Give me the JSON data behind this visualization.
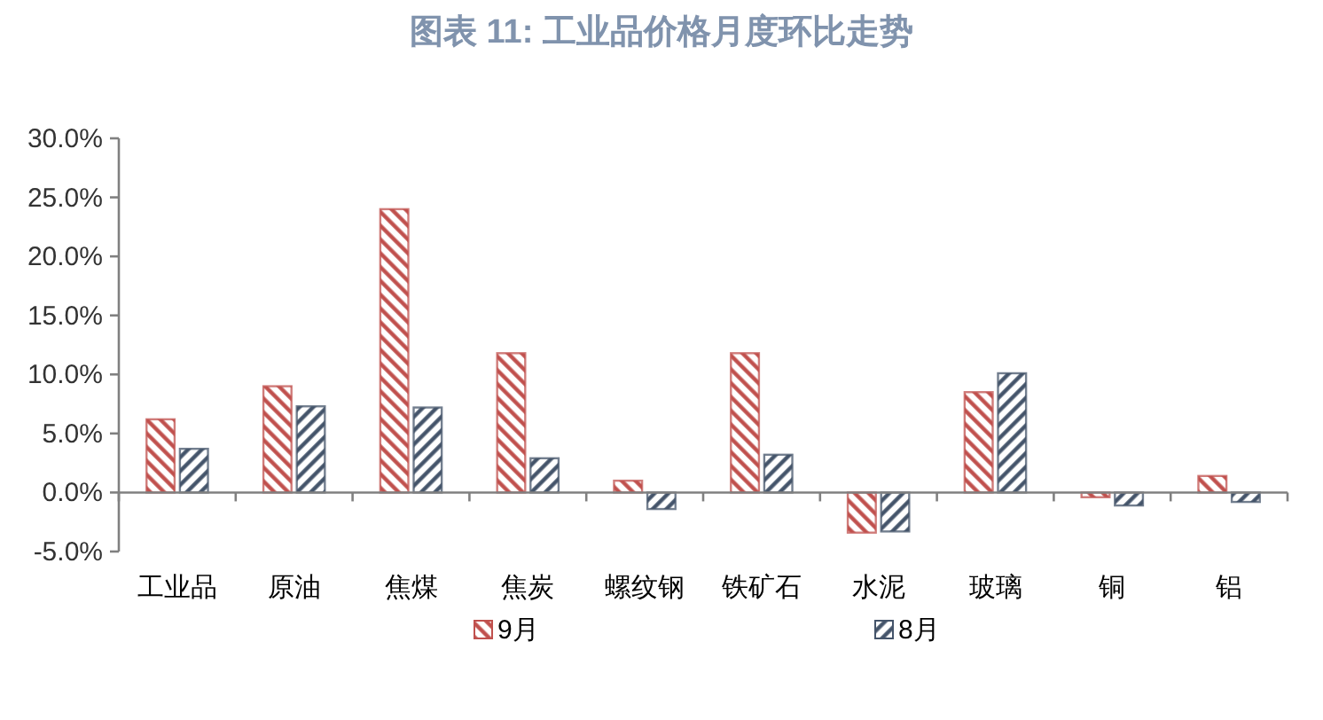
{
  "chart_data": {
    "type": "bar",
    "title": "图表 11: 工业品价格月度环比走势",
    "categories": [
      "工业品",
      "原油",
      "焦煤",
      "焦炭",
      "螺纹钢",
      "铁矿石",
      "水泥",
      "玻璃",
      "铜",
      "铝"
    ],
    "series": [
      {
        "name": "9月",
        "color": "#c0504d",
        "values": [
          6.2,
          9.0,
          24.0,
          11.8,
          1.0,
          11.8,
          -3.4,
          8.5,
          -0.4,
          1.4
        ]
      },
      {
        "name": "8月",
        "color": "#44546a",
        "values": [
          3.7,
          7.3,
          7.2,
          2.9,
          -1.4,
          3.2,
          -3.3,
          10.1,
          -1.1,
          -0.8
        ]
      }
    ],
    "ylim": [
      -5,
      30
    ],
    "yticks": [
      {
        "value": -5,
        "label": "-5.0%"
      },
      {
        "value": 0,
        "label": "0.0%"
      },
      {
        "value": 5,
        "label": "5.0%"
      },
      {
        "value": 10,
        "label": "10.0%"
      },
      {
        "value": 15,
        "label": "15.0%"
      },
      {
        "value": 20,
        "label": "20.0%"
      },
      {
        "value": 25,
        "label": "25.0%"
      },
      {
        "value": 30,
        "label": "30.0%"
      }
    ],
    "legend": "bottom"
  }
}
